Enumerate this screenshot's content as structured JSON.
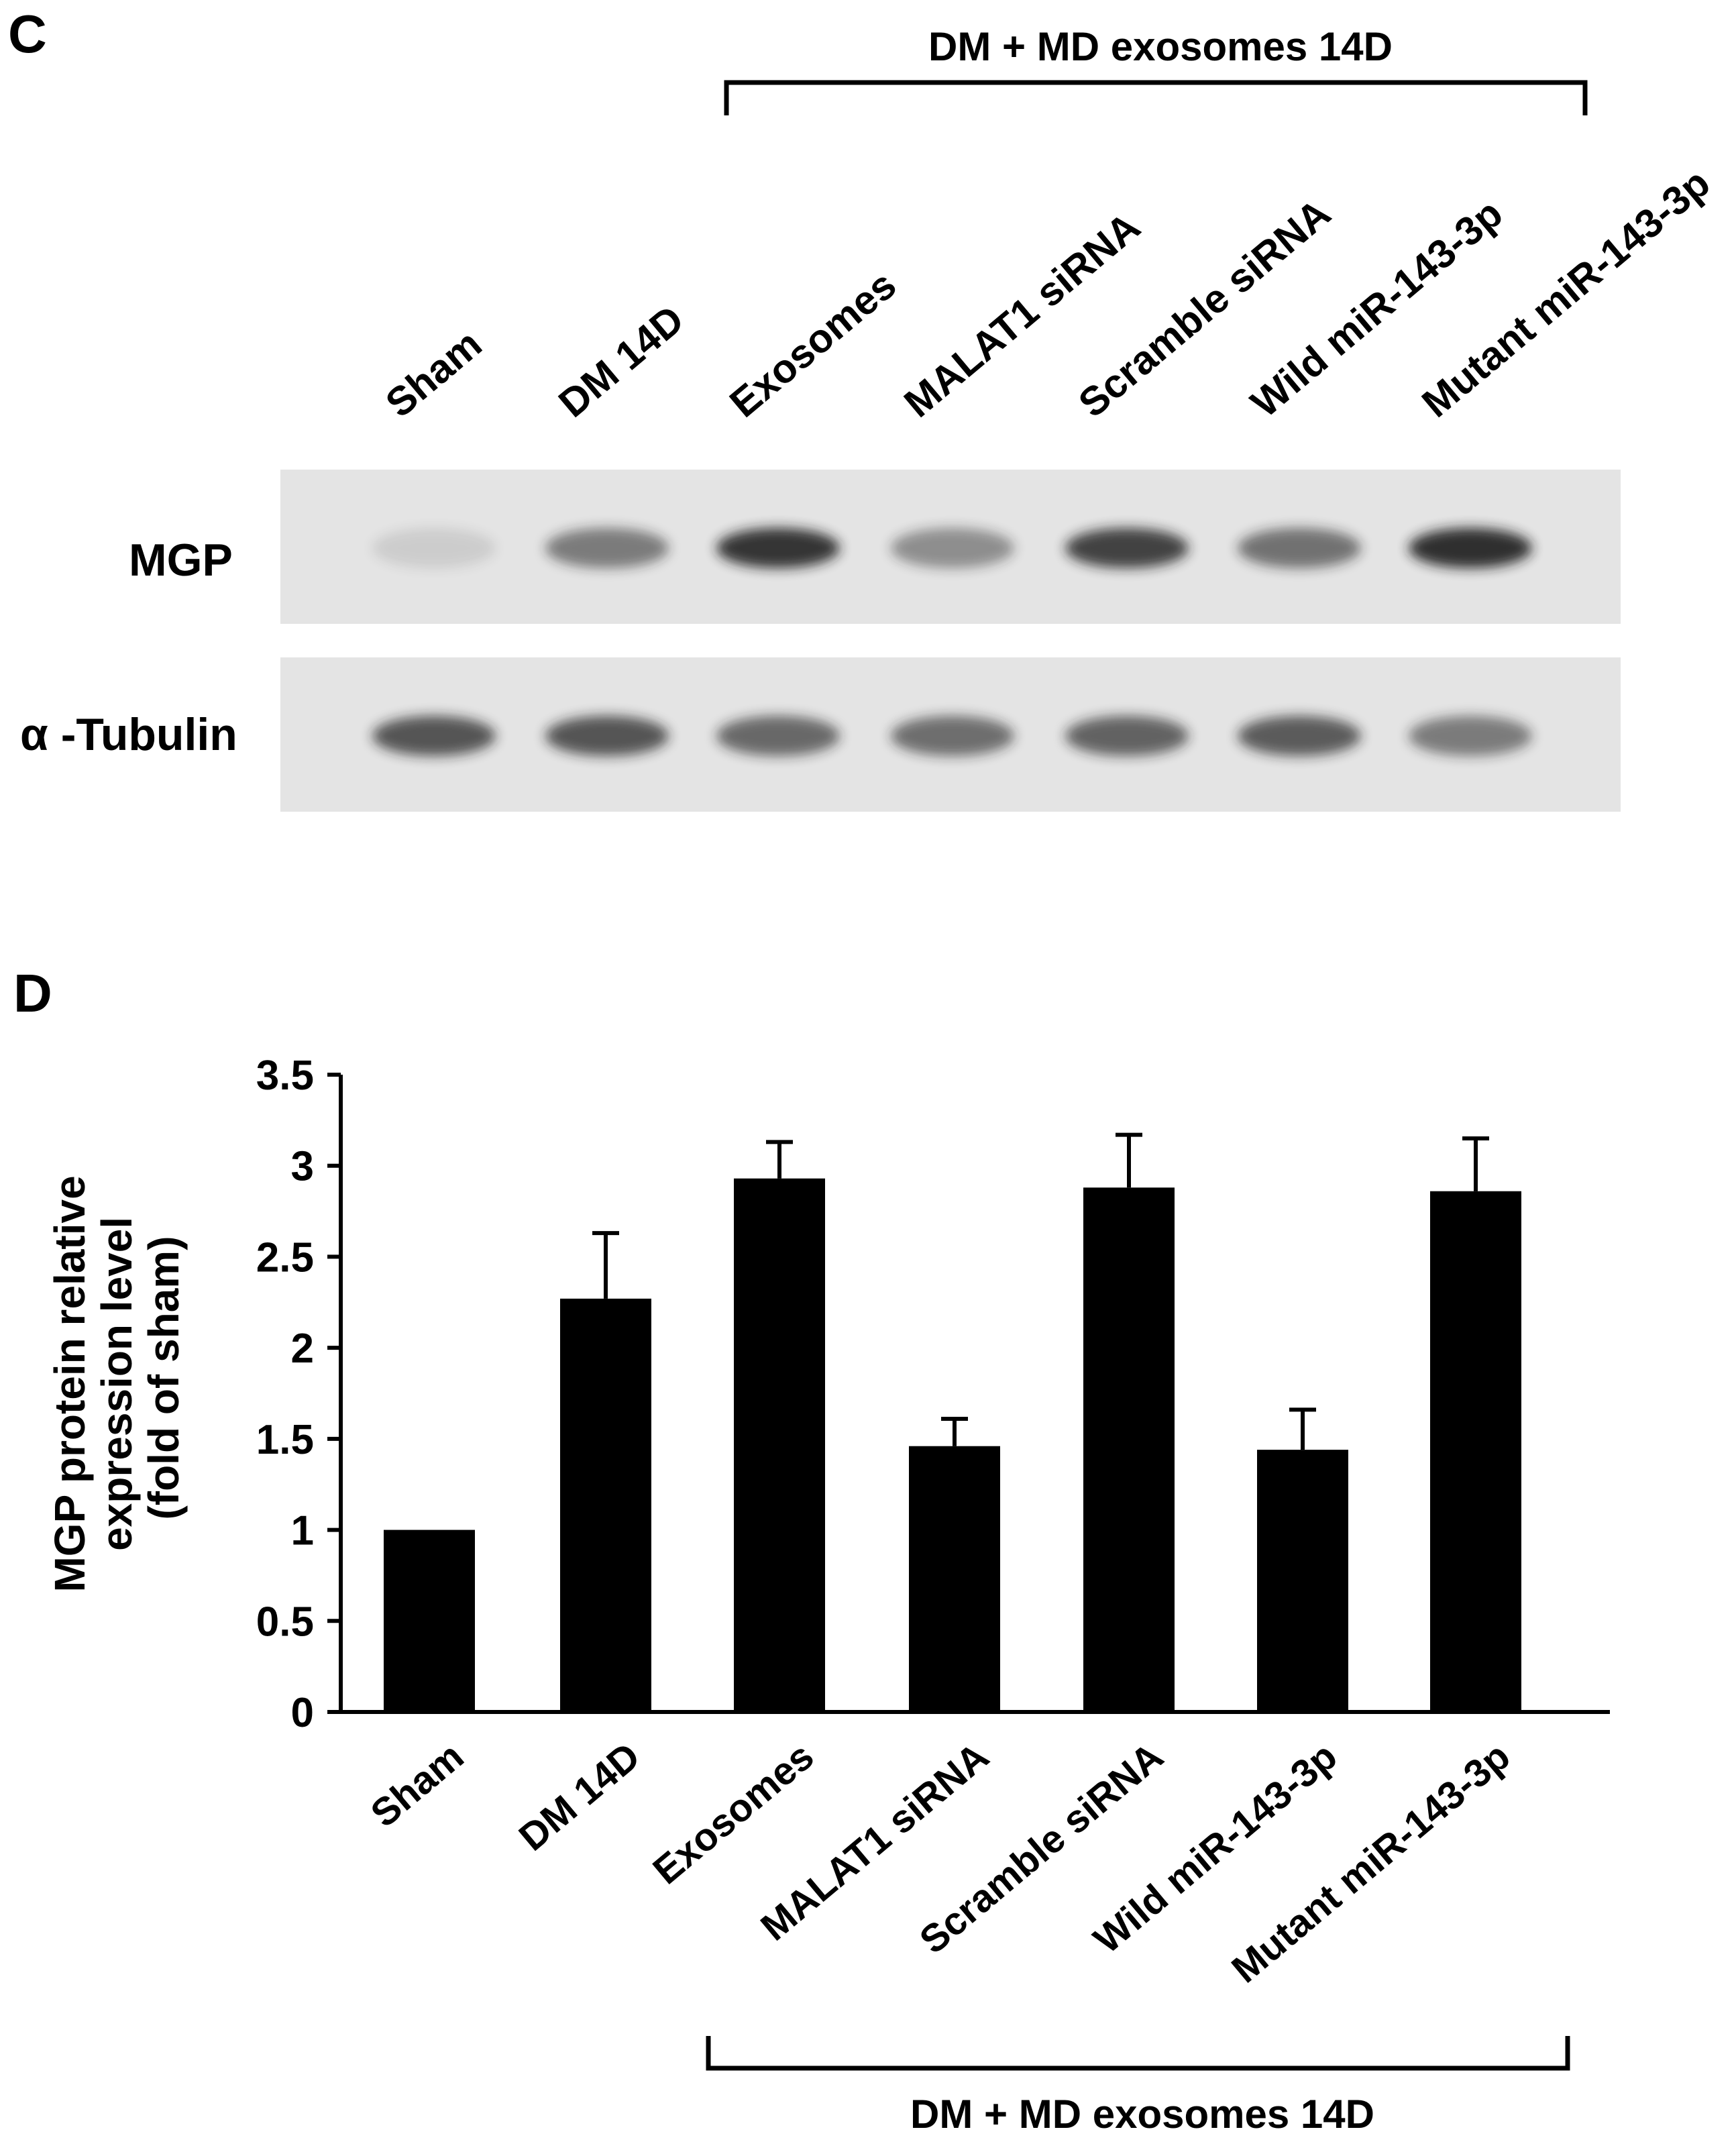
{
  "panel_c": {
    "label": "C",
    "bracket_label": "DM + MD exosomes 14D",
    "lane_labels": [
      "Sham",
      "DM 14D",
      "Exosomes",
      "MALAT1 siRNA",
      "Scramble siRNA",
      "Wild miR-143-3p",
      "Mutant miR-143-3p"
    ],
    "blots": [
      {
        "name": "MGP",
        "band_intensity": [
          0.12,
          0.55,
          0.92,
          0.45,
          0.85,
          0.6,
          0.95
        ]
      },
      {
        "name": "α -Tubulin",
        "band_intensity": [
          0.75,
          0.75,
          0.65,
          0.62,
          0.68,
          0.72,
          0.55
        ]
      }
    ],
    "colors": {
      "blot_background": "#e4e4e4",
      "band": "#1a1a1a"
    }
  },
  "panel_d": {
    "label": "D",
    "bracket_label": "DM + MD exosomes 14D"
  },
  "chart_data": {
    "type": "bar",
    "categories": [
      "Sham",
      "DM 14D",
      "Exosomes",
      "MALAT1 siRNA",
      "Scramble siRNA",
      "Wild miR-143-3p",
      "Mutant miR-143-3p"
    ],
    "values": [
      1.0,
      2.27,
      2.93,
      1.46,
      2.88,
      1.44,
      2.86
    ],
    "errors": [
      0,
      0.36,
      0.2,
      0.15,
      0.29,
      0.22,
      0.29
    ],
    "ylabel_lines": [
      "MGP protein relative",
      "expression level",
      "(fold of sham)"
    ],
    "yticks": [
      "0",
      "0.5",
      "1",
      "1.5",
      "2",
      "2.5",
      "3",
      "3.5"
    ],
    "ylim": [
      0,
      3.5
    ],
    "bar_color": "#000000",
    "grid": false,
    "legend": "none"
  }
}
